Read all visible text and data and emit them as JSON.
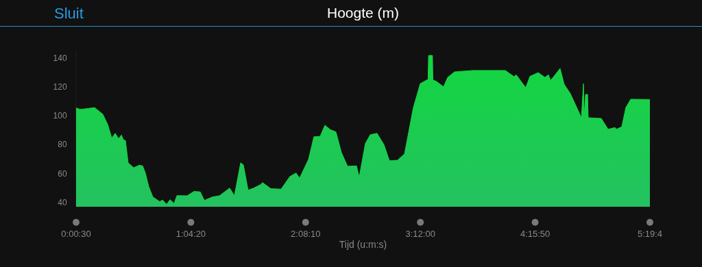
{
  "chart_data": {
    "type": "area",
    "title": "Hoogte (m)",
    "xlabel": "Tijd (u:m:s)",
    "annotations": [
      "Sluit"
    ],
    "x": [
      0.00833,
      0.046,
      0.18,
      0.256,
      0.301,
      0.339,
      0.371,
      0.402,
      0.428,
      0.447,
      0.466,
      0.491,
      0.542,
      0.593,
      0.625,
      0.65,
      0.682,
      0.72,
      0.784,
      0.809,
      0.847,
      0.879,
      0.917,
      0.943,
      1.038,
      1.101,
      1.159,
      1.197,
      1.273,
      1.337,
      1.432,
      1.476,
      1.534,
      1.559,
      1.603,
      1.654,
      1.718,
      1.737,
      1.813,
      1.909,
      1.991,
      2.048,
      2.08,
      2.163,
      2.213,
      2.271,
      2.315,
      2.366,
      2.417,
      2.468,
      2.525,
      2.608,
      2.633,
      2.69,
      2.735,
      2.798,
      2.862,
      2.913,
      2.989,
      3.053,
      3.135,
      3.199,
      3.262,
      3.271,
      3.276,
      3.312,
      3.316,
      3.351,
      3.415,
      3.453,
      3.517,
      3.688,
      3.987,
      4.069,
      4.088,
      4.177,
      4.216,
      4.292,
      4.355,
      4.387,
      4.406,
      4.438,
      4.495,
      4.533,
      4.591,
      4.693,
      4.712,
      4.718,
      4.731,
      4.75,
      4.756,
      4.877,
      4.94,
      5.004,
      5.017,
      5.067,
      5.105,
      5.15,
      5.32778
    ],
    "series": [
      {
        "color": "#13d640",
        "values": [
          105.4,
          104.3,
          105.6,
          101,
          94,
          84.6,
          87.8,
          84.1,
          86.6,
          83.3,
          82.8,
          67.4,
          64,
          65.7,
          65.3,
          60.5,
          50.9,
          43.8,
          40.5,
          41.7,
          38.6,
          41.9,
          39.3,
          44.7,
          44.6,
          47.6,
          47.3,
          41.4,
          43.8,
          44.6,
          49.9,
          44.6,
          67.4,
          66,
          48.5,
          49.9,
          52.3,
          53.7,
          49.5,
          49.2,
          58,
          60.3,
          56.8,
          69.8,
          85.4,
          85.7,
          93.4,
          90.3,
          88.8,
          74.5,
          65,
          65.3,
          57.5,
          80.7,
          86.8,
          87.8,
          80,
          68.8,
          69.2,
          73.6,
          105.7,
          122.2,
          124.8,
          124.8,
          141.7,
          141.7,
          124.8,
          123.6,
          120,
          126.5,
          130.3,
          131.3,
          131.3,
          127,
          128.3,
          119.4,
          127.2,
          129.8,
          126.5,
          128.3,
          124.4,
          127.2,
          132.7,
          121.8,
          115.2,
          98.6,
          122.2,
          98.6,
          114.7,
          114.7,
          98.6,
          98.1,
          90.6,
          91.8,
          90.6,
          92.3,
          105.7,
          111.4,
          111.2
        ]
      }
    ],
    "xlim": [
      0.00833,
      5.32778
    ],
    "xticks": [
      {
        "value": 0.00833,
        "label": "0:00:30"
      },
      {
        "value": 1.07222,
        "label": "1:04:20"
      },
      {
        "value": 2.13611,
        "label": "2:08:10"
      },
      {
        "value": 3.2,
        "label": "3:12:00"
      },
      {
        "value": 4.26389,
        "label": "4:15:50"
      },
      {
        "value": 5.32778,
        "label": "5:19:4"
      }
    ],
    "ylim": [
      37,
      145
    ],
    "yticks": [
      40,
      60,
      80,
      100,
      120,
      140
    ]
  }
}
